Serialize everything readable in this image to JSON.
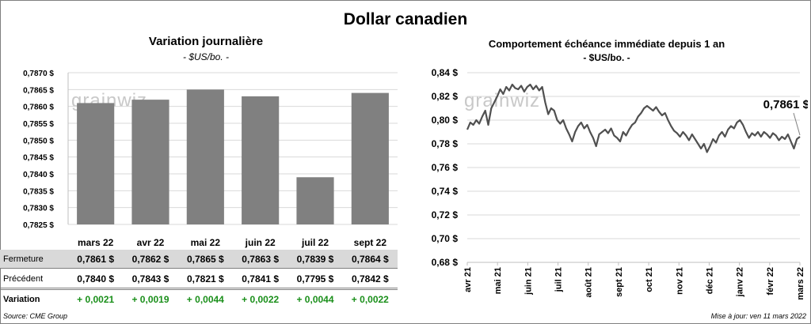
{
  "main_title": "Dollar canadien",
  "left_chart": {
    "title": "Variation  journalière",
    "subtitle": "- $US/bo. -"
  },
  "right_chart": {
    "title": "Comportement échéance immédiate depuis 1 an",
    "subtitle": "- $US/bo. -",
    "last_value_label": "0,7861 $"
  },
  "watermark": "grainwiz",
  "table": {
    "rows": [
      {
        "label": "Fermeture",
        "values": [
          "0,7861",
          "0,7862",
          "0,7865",
          "0,7863",
          "0,7839",
          "0,7864"
        ],
        "currency": "$"
      },
      {
        "label": "Précédent",
        "values": [
          "0,7840",
          "0,7843",
          "0,7821",
          "0,7841",
          "0,7795",
          "0,7842"
        ],
        "currency": "$"
      },
      {
        "label": "Variation",
        "values": [
          "+ 0,0021",
          "+ 0,0019",
          "+ 0,0044",
          "+ 0,0022",
          "+ 0,0044",
          "+ 0,0022"
        ]
      }
    ]
  },
  "footer": {
    "source": "Source: CME Group",
    "updated": "Mise à jour: ven 11 mars 2022"
  },
  "colors": {
    "bar": "#808080",
    "line": "#505050",
    "positive": "#1a8f1a",
    "grid": "#d9d9d9",
    "row_shade": "#d9d9d9"
  },
  "chart_data": [
    {
      "type": "bar",
      "categories": [
        "mars 22",
        "avr 22",
        "mai 22",
        "juin 22",
        "juil 22",
        "sept 22"
      ],
      "values": [
        0.7861,
        0.7862,
        0.7865,
        0.7863,
        0.7839,
        0.7864
      ],
      "ylim": [
        0.7825,
        0.787
      ],
      "yticks": [
        "0,7825 $",
        "0,7830 $",
        "0,7835 $",
        "0,7840 $",
        "0,7845 $",
        "0,7850 $",
        "0,7855 $",
        "0,7860 $",
        "0,7865 $",
        "0,7870 $"
      ],
      "grid": true
    },
    {
      "type": "line",
      "x_labels": [
        "avr 21",
        "mai 21",
        "juin 21",
        "juil 21",
        "août 21",
        "sept 21",
        "oct 21",
        "nov 21",
        "déc 21",
        "janv 22",
        "févr 22",
        "mars 22"
      ],
      "ylim": [
        0.68,
        0.84
      ],
      "yticks": [
        "0,68 $",
        "0,70 $",
        "0,72 $",
        "0,74 $",
        "0,76 $",
        "0,78 $",
        "0,80 $",
        "0,82 $",
        "0,84 $"
      ],
      "grid": true,
      "series": [
        {
          "values": [
            0.792,
            0.798,
            0.796,
            0.8,
            0.797,
            0.803,
            0.808,
            0.796,
            0.81,
            0.815,
            0.82,
            0.826,
            0.822,
            0.828,
            0.825,
            0.83,
            0.827,
            0.826,
            0.829,
            0.824,
            0.828,
            0.83,
            0.826,
            0.829,
            0.825,
            0.828,
            0.815,
            0.805,
            0.81,
            0.808,
            0.8,
            0.797,
            0.8,
            0.793,
            0.788,
            0.782,
            0.79,
            0.795,
            0.798,
            0.793,
            0.796,
            0.79,
            0.785,
            0.778,
            0.788,
            0.79,
            0.792,
            0.789,
            0.793,
            0.787,
            0.785,
            0.782,
            0.79,
            0.787,
            0.792,
            0.796,
            0.798,
            0.803,
            0.806,
            0.81,
            0.812,
            0.81,
            0.808,
            0.811,
            0.807,
            0.804,
            0.806,
            0.8,
            0.795,
            0.791,
            0.789,
            0.786,
            0.79,
            0.787,
            0.783,
            0.788,
            0.784,
            0.78,
            0.776,
            0.78,
            0.773,
            0.778,
            0.784,
            0.781,
            0.787,
            0.79,
            0.786,
            0.792,
            0.795,
            0.793,
            0.798,
            0.8,
            0.796,
            0.79,
            0.785,
            0.789,
            0.787,
            0.79,
            0.786,
            0.79,
            0.788,
            0.785,
            0.789,
            0.787,
            0.783,
            0.786,
            0.784,
            0.788,
            0.782,
            0.776,
            0.784,
            0.786
          ]
        }
      ]
    }
  ]
}
